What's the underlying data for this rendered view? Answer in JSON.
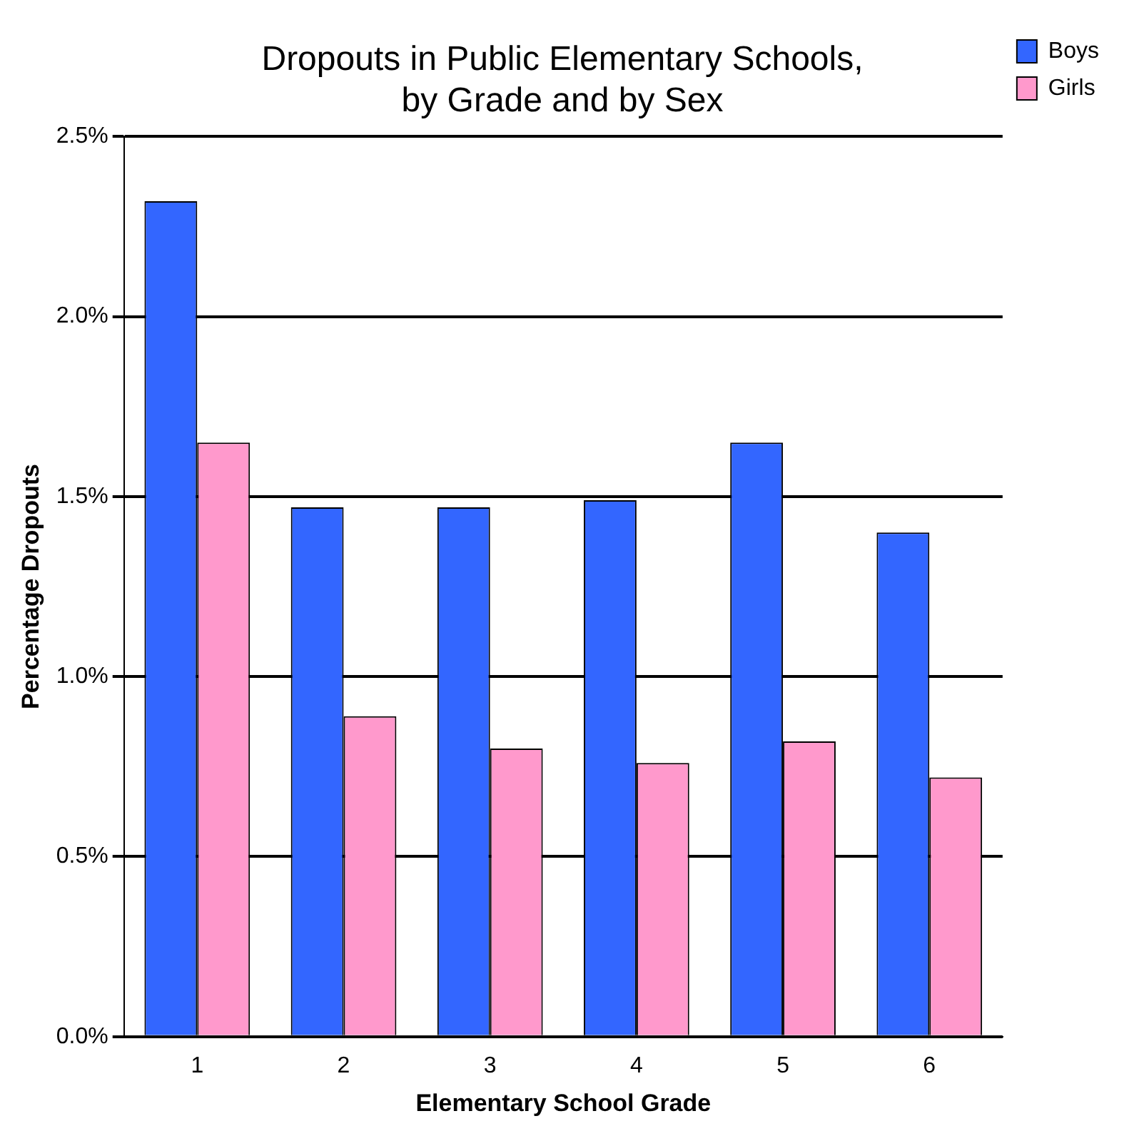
{
  "chart_data": {
    "type": "bar",
    "title": "Dropouts in Public Elementary Schools,\nby Grade and by Sex",
    "xlabel": "Elementary School Grade",
    "ylabel": "Percentage Dropouts",
    "categories": [
      "1",
      "2",
      "3",
      "4",
      "5",
      "6"
    ],
    "series": [
      {
        "name": "Boys",
        "color": "#3366ff",
        "values": [
          2.32,
          1.47,
          1.47,
          1.49,
          1.65,
          1.4
        ]
      },
      {
        "name": "Girls",
        "color": "#ff99cc",
        "values": [
          1.65,
          0.89,
          0.8,
          0.76,
          0.82,
          0.72
        ]
      }
    ],
    "ylim": [
      0,
      2.5
    ],
    "yticks": [
      {
        "value": 0,
        "label": "0.0%"
      },
      {
        "value": 0.5,
        "label": "0.5%"
      },
      {
        "value": 1,
        "label": "1.0%"
      },
      {
        "value": 1.5,
        "label": "1.5%"
      },
      {
        "value": 2,
        "label": "2.0%"
      },
      {
        "value": 2.5,
        "label": "2.5%"
      }
    ],
    "grid": "y",
    "legend": "top right"
  }
}
